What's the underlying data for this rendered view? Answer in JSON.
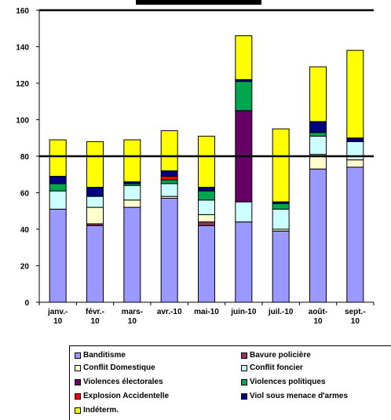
{
  "chart_data": {
    "type": "bar",
    "stacked": true,
    "title": "",
    "categories": [
      "janv.-\n10",
      "févr.-\n10",
      "mars-\n10",
      "avr.-10",
      "mai-10",
      "juin-10",
      "juil.-10",
      "août-\n10",
      "sept.-\n10"
    ],
    "ylim": [
      0,
      160
    ],
    "yticks": [
      0,
      20,
      40,
      60,
      80,
      100,
      120,
      140,
      160
    ],
    "grid": false,
    "reference_line": 80,
    "legend_position": "bottom",
    "series": [
      {
        "name": "Banditisme",
        "color": "#9999ff",
        "values": [
          51,
          42,
          52,
          57,
          42,
          44,
          39,
          73,
          74
        ]
      },
      {
        "name": "Bavure policière",
        "color": "#993366",
        "values": [
          0,
          1,
          0,
          0,
          2,
          0,
          0,
          0,
          0
        ]
      },
      {
        "name": "Conflit Domestique",
        "color": "#ffffcc",
        "values": [
          0,
          9,
          4,
          1,
          4,
          0,
          1,
          8,
          4
        ]
      },
      {
        "name": "Conflit foncier",
        "color": "#ccffff",
        "values": [
          10,
          6,
          8,
          7,
          8,
          11,
          11,
          10,
          10
        ]
      },
      {
        "name": "Violences électorales",
        "color": "#660066",
        "values": [
          0,
          0,
          0,
          0,
          0,
          50,
          0,
          0,
          0
        ]
      },
      {
        "name": "Violences politiques",
        "color": "#00a650",
        "values": [
          4,
          0,
          1,
          2,
          5,
          16,
          3,
          2,
          0
        ]
      },
      {
        "name": "Explosion Accidentelle",
        "color": "#ff0000",
        "values": [
          0,
          0,
          0,
          2,
          0,
          0,
          0,
          0,
          0
        ]
      },
      {
        "name": "Viol sous menace d'armes",
        "color": "#000080",
        "values": [
          4,
          5,
          1,
          3,
          2,
          1,
          1,
          6,
          2
        ]
      },
      {
        "name": "Indéterm.",
        "color": "#ffff00",
        "values": [
          20,
          25,
          23,
          22,
          28,
          24,
          40,
          30,
          48
        ]
      }
    ]
  }
}
